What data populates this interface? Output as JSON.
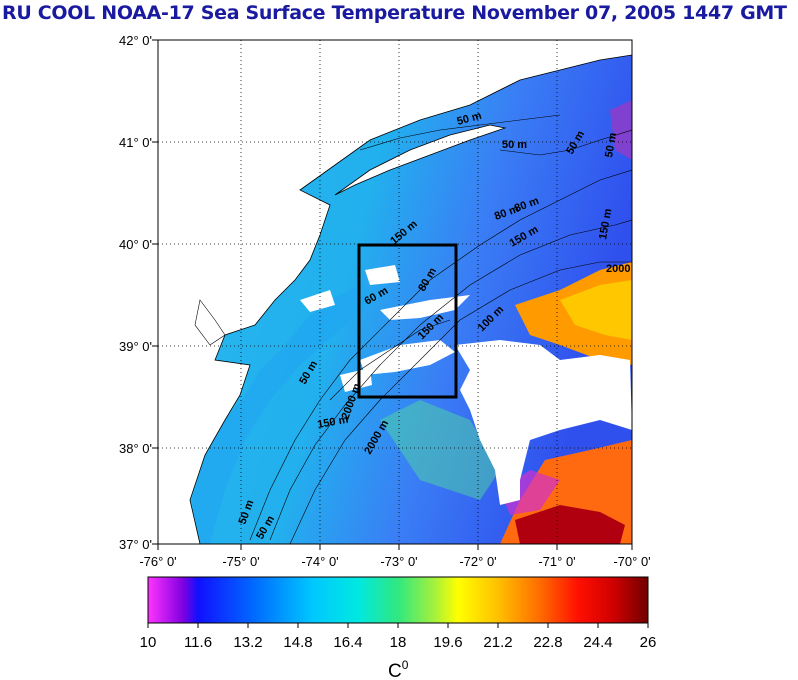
{
  "title": "RU COOL  NOAA-17 Sea Surface Temperature November 07, 2005 1447 GMT",
  "lat_labels": [
    "42° 0'",
    "41° 0'",
    "40° 0'",
    "39° 0'",
    "38° 0'",
    "37° 0'"
  ],
  "lon_labels": [
    "-76° 0'",
    "-75° 0'",
    "-74° 0'",
    "-73° 0'",
    "-72° 0'",
    "-71° 0'",
    "-70° 0'"
  ],
  "contour_labels": [
    "50 m",
    "50 m",
    "50 m",
    "50 m",
    "80 m",
    "80 m",
    "150 m",
    "150 m",
    "150 m",
    "150 m",
    "2000",
    "2000 m",
    "50 m",
    "100 m",
    "60 m",
    "2000 m",
    "80 m",
    "50 m",
    "150 m",
    "50 m"
  ],
  "colorbar": {
    "ticks": [
      "10",
      "11.6",
      "13.2",
      "14.8",
      "16.4",
      "18",
      "19.6",
      "21.2",
      "22.8",
      "24.4",
      "26"
    ],
    "unit": "C",
    "unit_sup": "0",
    "min": 10,
    "max": 26
  },
  "study_box": {
    "lon_min": -73.4,
    "lon_max": -72.3,
    "lat_min": 38.5,
    "lat_max": 40.0
  }
}
